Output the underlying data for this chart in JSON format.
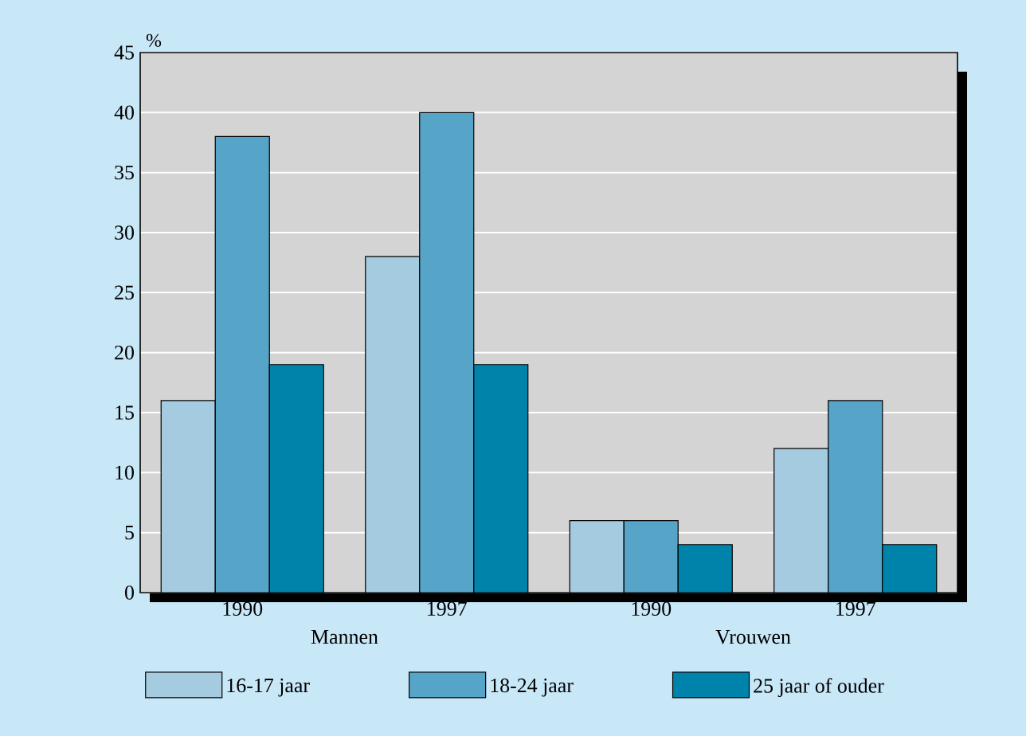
{
  "chart_data": {
    "type": "bar",
    "ylabel": "%",
    "categories": [
      "1990",
      "1997",
      "1990",
      "1997"
    ],
    "series": [
      {
        "name": "16-17 jaar",
        "color": "#a5cbe0",
        "values": [
          16,
          28,
          6,
          12
        ]
      },
      {
        "name": "18-24 jaar",
        "color": "#56a5c8",
        "values": [
          38,
          40,
          6,
          16
        ]
      },
      {
        "name": "25 jaar of ouder",
        "color": "#0083ab",
        "values": [
          19,
          19,
          4,
          4
        ]
      }
    ],
    "annotations": [
      "Mannen",
      "Vrouwen"
    ],
    "ylim": [
      0,
      45
    ],
    "yticks": [
      0,
      5,
      10,
      15,
      20,
      25,
      30,
      35,
      40,
      45
    ],
    "grid": "y",
    "legend": "bottom"
  }
}
